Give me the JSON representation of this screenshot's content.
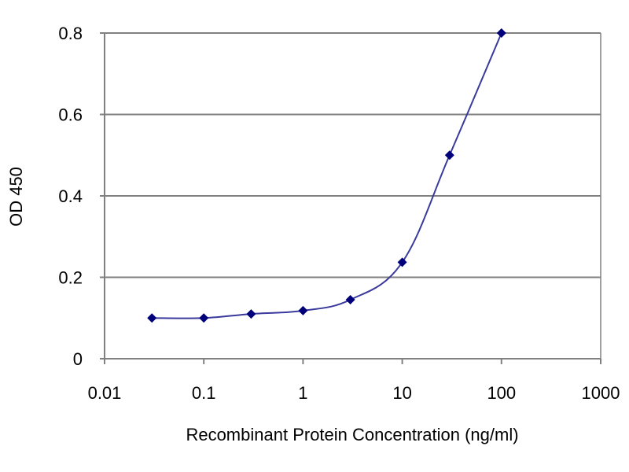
{
  "chart_data": {
    "type": "line",
    "title": "",
    "xlabel": "Recombinant Protein Concentration (ng/ml)",
    "ylabel": "OD 450",
    "x_scale": "log",
    "xlim": [
      0.01,
      1000
    ],
    "ylim": [
      0,
      0.8
    ],
    "x_ticks": [
      "0.01",
      "0.1",
      "1",
      "10",
      "100",
      "1000"
    ],
    "y_ticks": [
      "0",
      "0.2",
      "0.4",
      "0.6",
      "0.8"
    ],
    "grid": "horizontal",
    "legend": "none",
    "series": [
      {
        "x": [
          0.03,
          0.1,
          0.3,
          1,
          3,
          10,
          30,
          100
        ],
        "y": [
          0.1,
          0.1,
          0.11,
          0.118,
          0.145,
          0.237,
          0.5,
          0.8
        ]
      }
    ],
    "colors": {
      "line": "#3a3a9c",
      "marker": "#00007a",
      "grid": "#808080",
      "axis": "#808080"
    }
  }
}
